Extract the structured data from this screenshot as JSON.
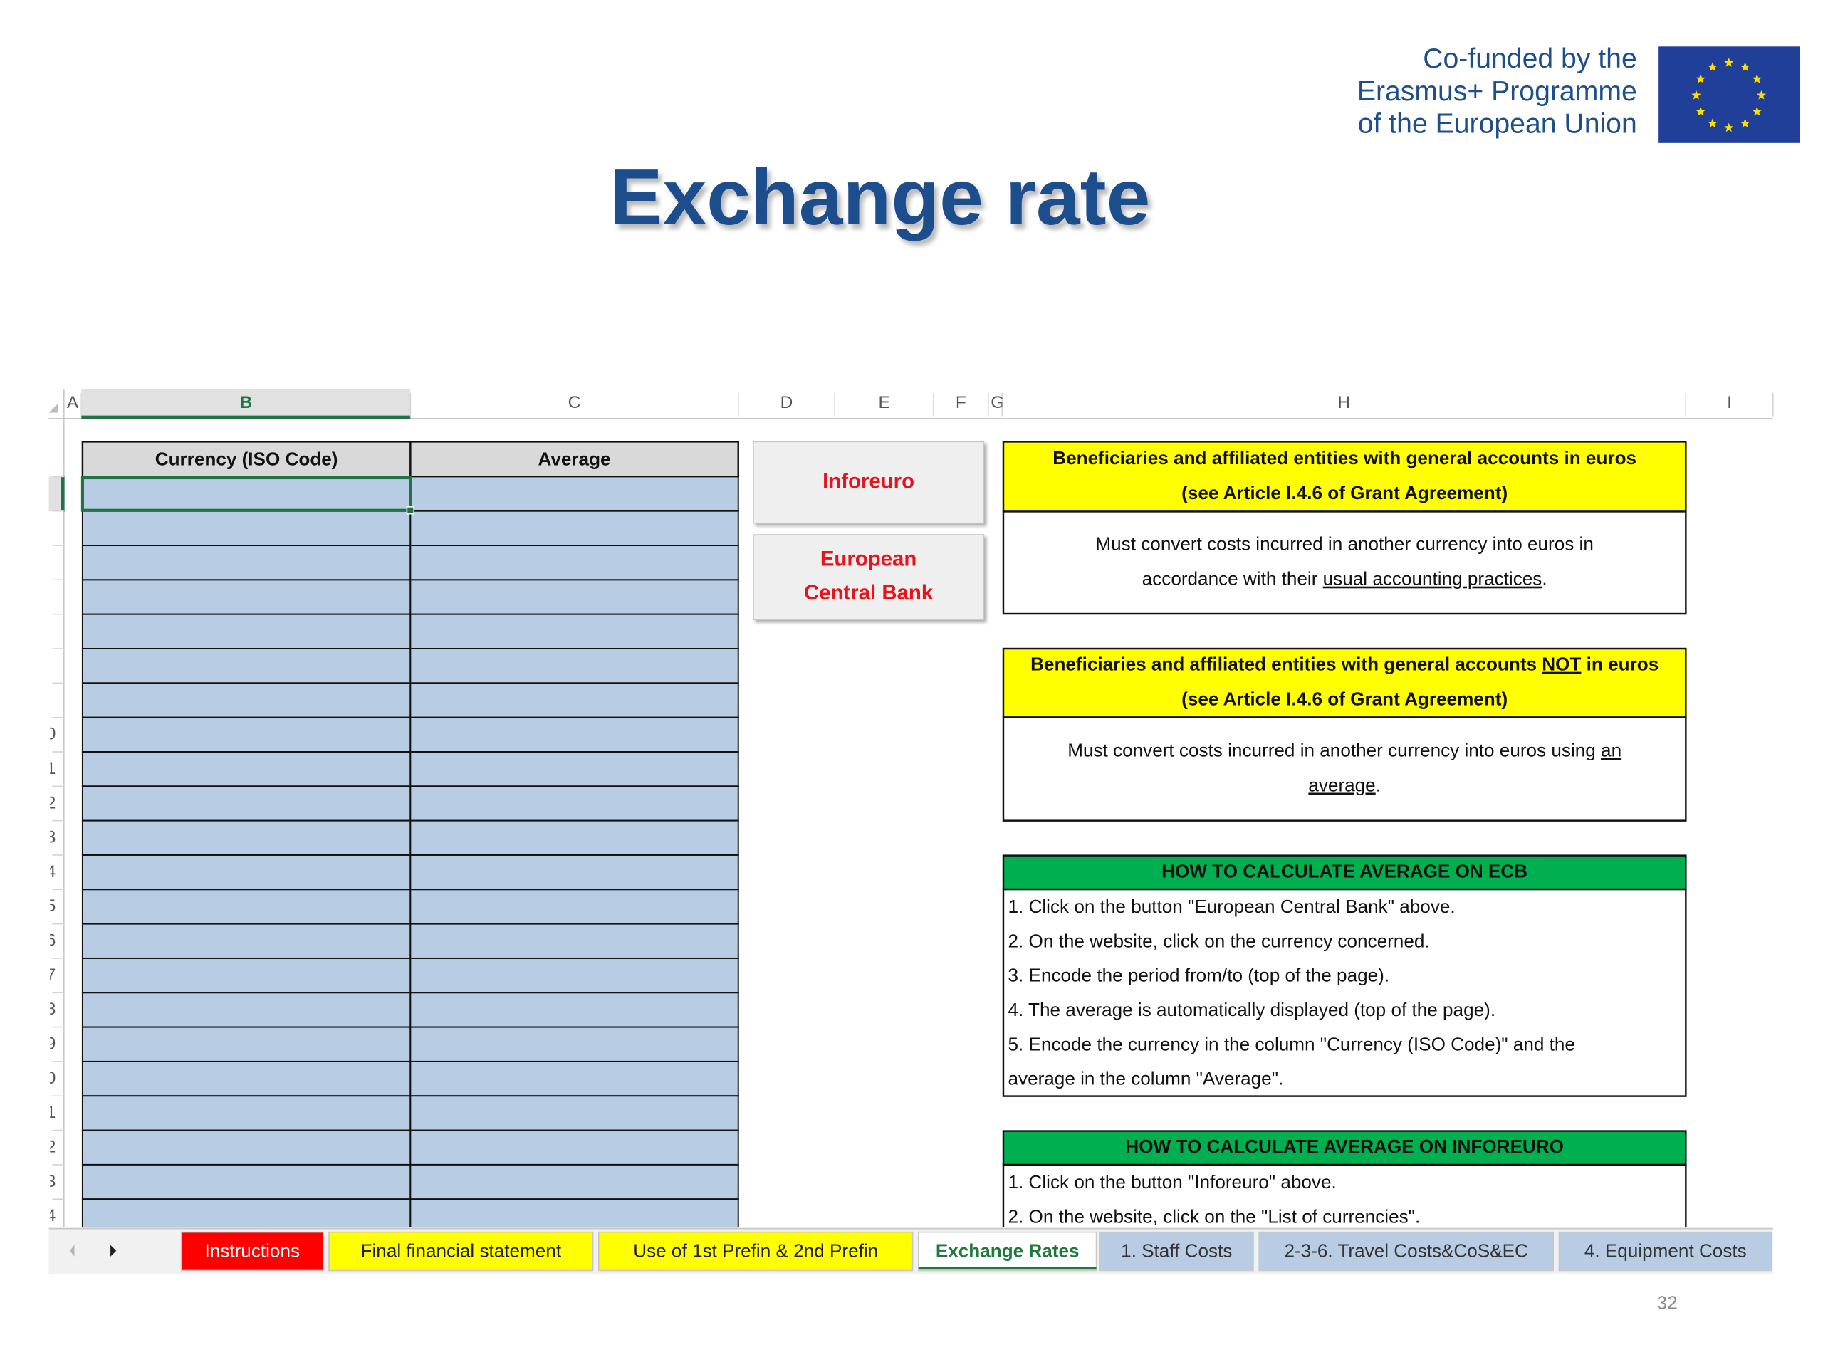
{
  "logo": {
    "lines": [
      "Co-funded by the",
      "Erasmus+ Programme",
      "of the European Union"
    ]
  },
  "title": "Exchange rate",
  "spreadsheet": {
    "column_headers": [
      "A",
      "B",
      "C",
      "D",
      "E",
      "F",
      "G",
      "H",
      "I"
    ],
    "row_numbers": [
      "0",
      "1",
      "2",
      "3",
      "4",
      "5",
      "6",
      "7",
      "8",
      "9",
      "0",
      "1",
      "2",
      "3",
      "4"
    ],
    "table_headers": [
      "Currency (ISO Code)",
      "Average"
    ],
    "buttons": [
      {
        "lines": [
          "Inforeuro"
        ]
      },
      {
        "lines": [
          "European",
          "Central Bank"
        ]
      }
    ],
    "boxes": [
      {
        "heading_color": "#ffff00",
        "body_align": "center",
        "heading": [
          [
            {
              "text": "Beneficiaries and affiliated entities with general accounts in euros",
              "underline": false
            }
          ],
          [
            {
              "text": "(see Article I.4.6 of Grant Agreement)",
              "underline": false
            }
          ]
        ],
        "body": [
          [
            {
              "text": "Must convert costs incurred in another currency into euros in",
              "underline": false
            }
          ],
          [
            {
              "text": "accordance with their ",
              "underline": false
            },
            {
              "text": "usual accounting practices",
              "underline": true
            },
            {
              "text": ".",
              "underline": false
            }
          ]
        ]
      },
      {
        "heading_color": "#ffff00",
        "body_align": "center",
        "heading": [
          [
            {
              "text": "Beneficiaries and affiliated entities with general accounts ",
              "underline": false
            },
            {
              "text": "NOT",
              "underline": true
            },
            {
              "text": " in euros",
              "underline": false
            }
          ],
          [
            {
              "text": "(see Article I.4.6 of Grant Agreement)",
              "underline": false
            }
          ]
        ],
        "body": [
          [
            {
              "text": "Must convert costs incurred in another currency into euros using ",
              "underline": false
            },
            {
              "text": "an",
              "underline": true
            }
          ],
          [
            {
              "text": "average",
              "underline": true
            },
            {
              "text": ".",
              "underline": false
            }
          ]
        ]
      },
      {
        "heading_color": "#00b050",
        "body_align": "left",
        "heading": [
          [
            {
              "text": "HOW TO CALCULATE AVERAGE ON ECB",
              "underline": false
            }
          ]
        ],
        "body": [
          [
            {
              "text": "1. Click on the button \"European Central Bank\" above.",
              "underline": false
            }
          ],
          [
            {
              "text": "2. On the website, click on the currency concerned.",
              "underline": false
            }
          ],
          [
            {
              "text": "3. Encode the period from/to (top of the page).",
              "underline": false
            }
          ],
          [
            {
              "text": "4. The average is automatically displayed (top of the page).",
              "underline": false
            }
          ],
          [
            {
              "text": "5. Encode the currency in the column \"Currency (ISO Code)\" and the",
              "underline": false
            }
          ],
          [
            {
              "text": "average in the column \"Average\".",
              "underline": false
            }
          ]
        ]
      },
      {
        "heading_color": "#00b050",
        "body_align": "left",
        "heading": [
          [
            {
              "text": "HOW TO CALCULATE AVERAGE ON INFOREURO",
              "underline": false
            }
          ]
        ],
        "body": [
          [
            {
              "text": "1. Click on the button \"Inforeuro\" above.",
              "underline": false
            }
          ],
          [
            {
              "text": "2. On the website, click on the \"List of currencies\".",
              "underline": false
            }
          ]
        ]
      }
    ],
    "tabs": [
      {
        "label": "Instructions",
        "color": "#ff0000",
        "text_color": "#ffffff"
      },
      {
        "label": "Final financial statement",
        "color": "#ffff00",
        "text_color": "#222222"
      },
      {
        "label": "Use of 1st Prefin & 2nd Prefin",
        "color": "#ffff00",
        "text_color": "#222222"
      },
      {
        "label": "Exchange Rates",
        "color": "#ffffff",
        "text_color": "#1e7a3c",
        "active": true
      },
      {
        "label": "1. Staff Costs",
        "color": "#b8cce4",
        "text_color": "#333333"
      },
      {
        "label": "2-3-6. Travel Costs&CoS&EC",
        "color": "#b8cce4",
        "text_color": "#333333"
      },
      {
        "label": "4. Equipment Costs",
        "color": "#b8cce4",
        "text_color": "#333333"
      }
    ]
  },
  "page_number": "32"
}
